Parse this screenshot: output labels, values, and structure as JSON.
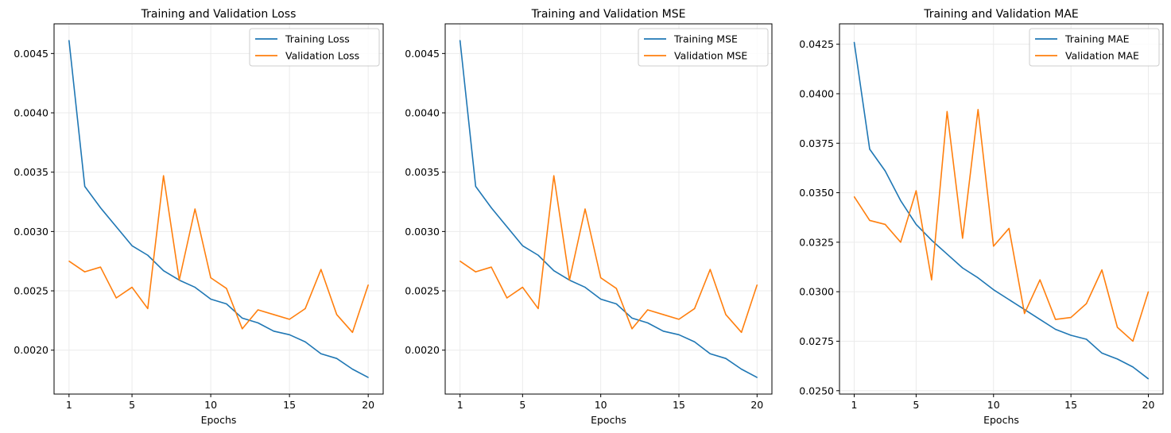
{
  "colors": {
    "series_1": "#1f77b4",
    "series_2": "#ff7f0e",
    "grid": "#ebebeb",
    "frame": "#000000"
  },
  "chart_data": [
    {
      "type": "line",
      "title": "Training and Validation Loss",
      "xlabel": "Epochs",
      "ylabel": "",
      "x_ticks": [
        1,
        5,
        10,
        15,
        20
      ],
      "y_ticks": [
        0.002,
        0.0025,
        0.003,
        0.0035,
        0.004,
        0.0045
      ],
      "y_tick_labels": [
        "0.0020",
        "0.0025",
        "0.0030",
        "0.0035",
        "0.0040",
        "0.0045"
      ],
      "xlim": [
        0.05,
        20.95
      ],
      "ylim": [
        0.00163,
        0.00475
      ],
      "grid": true,
      "legend": "top-right",
      "x": [
        1,
        2,
        3,
        4,
        5,
        6,
        7,
        8,
        9,
        10,
        11,
        12,
        13,
        14,
        15,
        16,
        17,
        18,
        19,
        20
      ],
      "series": [
        {
          "name": "Training Loss",
          "color": "#1f77b4",
          "values": [
            0.00461,
            0.00338,
            0.0032,
            0.00304,
            0.00288,
            0.0028,
            0.00267,
            0.00259,
            0.00253,
            0.00243,
            0.00239,
            0.00227,
            0.00223,
            0.00216,
            0.00213,
            0.00207,
            0.00197,
            0.00193,
            0.00184,
            0.00177
          ]
        },
        {
          "name": "Validation Loss",
          "color": "#ff7f0e",
          "values": [
            0.00275,
            0.00266,
            0.0027,
            0.00244,
            0.00253,
            0.00235,
            0.00347,
            0.00259,
            0.00319,
            0.00261,
            0.00252,
            0.00218,
            0.00234,
            0.0023,
            0.00226,
            0.00235,
            0.00268,
            0.0023,
            0.00215,
            0.00255
          ]
        }
      ]
    },
    {
      "type": "line",
      "title": "Training and Validation MSE",
      "xlabel": "Epochs",
      "ylabel": "",
      "x_ticks": [
        1,
        5,
        10,
        15,
        20
      ],
      "y_ticks": [
        0.002,
        0.0025,
        0.003,
        0.0035,
        0.004,
        0.0045
      ],
      "y_tick_labels": [
        "0.0020",
        "0.0025",
        "0.0030",
        "0.0035",
        "0.0040",
        "0.0045"
      ],
      "xlim": [
        0.05,
        20.95
      ],
      "ylim": [
        0.00163,
        0.00475
      ],
      "grid": true,
      "legend": "top-right",
      "x": [
        1,
        2,
        3,
        4,
        5,
        6,
        7,
        8,
        9,
        10,
        11,
        12,
        13,
        14,
        15,
        16,
        17,
        18,
        19,
        20
      ],
      "series": [
        {
          "name": "Training MSE",
          "color": "#1f77b4",
          "values": [
            0.00461,
            0.00338,
            0.0032,
            0.00304,
            0.00288,
            0.0028,
            0.00267,
            0.00259,
            0.00253,
            0.00243,
            0.00239,
            0.00227,
            0.00223,
            0.00216,
            0.00213,
            0.00207,
            0.00197,
            0.00193,
            0.00184,
            0.00177
          ]
        },
        {
          "name": "Validation MSE",
          "color": "#ff7f0e",
          "values": [
            0.00275,
            0.00266,
            0.0027,
            0.00244,
            0.00253,
            0.00235,
            0.00347,
            0.00259,
            0.00319,
            0.00261,
            0.00252,
            0.00218,
            0.00234,
            0.0023,
            0.00226,
            0.00235,
            0.00268,
            0.0023,
            0.00215,
            0.00255
          ]
        }
      ]
    },
    {
      "type": "line",
      "title": "Training and Validation MAE",
      "xlabel": "Epochs",
      "ylabel": "",
      "x_ticks": [
        1,
        5,
        10,
        15,
        20
      ],
      "y_ticks": [
        0.025,
        0.0275,
        0.03,
        0.0325,
        0.035,
        0.0375,
        0.04,
        0.0425
      ],
      "y_tick_labels": [
        "0.0250",
        "0.0275",
        "0.0300",
        "0.0325",
        "0.0350",
        "0.0375",
        "0.0400",
        "0.0425"
      ],
      "xlim": [
        0.05,
        20.95
      ],
      "ylim": [
        0.02483,
        0.04353
      ],
      "grid": true,
      "legend": "top-right",
      "x": [
        1,
        2,
        3,
        4,
        5,
        6,
        7,
        8,
        9,
        10,
        11,
        12,
        13,
        14,
        15,
        16,
        17,
        18,
        19,
        20
      ],
      "series": [
        {
          "name": "Training MAE",
          "color": "#1f77b4",
          "values": [
            0.0426,
            0.0372,
            0.0361,
            0.0346,
            0.0334,
            0.0326,
            0.0319,
            0.0312,
            0.0307,
            0.0301,
            0.0296,
            0.0291,
            0.0286,
            0.0281,
            0.0278,
            0.0276,
            0.0269,
            0.0266,
            0.0262,
            0.0256
          ]
        },
        {
          "name": "Validation MAE",
          "color": "#ff7f0e",
          "values": [
            0.0348,
            0.0336,
            0.0334,
            0.0325,
            0.0351,
            0.0306,
            0.0391,
            0.0327,
            0.0392,
            0.0323,
            0.0332,
            0.0289,
            0.0306,
            0.0286,
            0.0287,
            0.0294,
            0.0311,
            0.0282,
            0.0275,
            0.03
          ]
        }
      ]
    }
  ]
}
